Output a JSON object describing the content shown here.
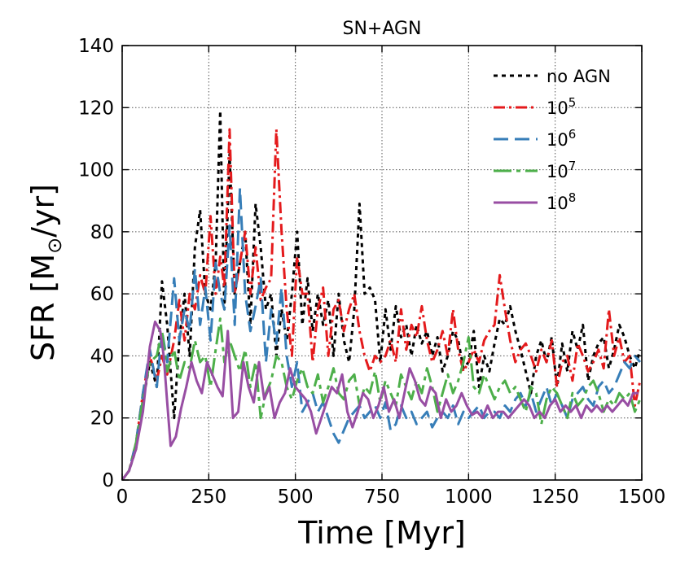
{
  "chart_data": {
    "type": "line",
    "title": "SN+AGN",
    "xlabel": "Time [Myr]",
    "ylabel_parts": {
      "pre": "SFR [M",
      "sub": "⊙",
      "post": "/yr]"
    },
    "xlim": [
      0,
      1500
    ],
    "ylim": [
      0,
      140
    ],
    "xticks": [
      0,
      250,
      500,
      750,
      1000,
      1250,
      1500
    ],
    "yticks": [
      0,
      20,
      40,
      60,
      80,
      100,
      120,
      140
    ],
    "grid": true,
    "legend_position": "top-right",
    "series": [
      {
        "name": "no AGN",
        "base": "no AGN",
        "sup": "",
        "color": "#000000",
        "dash": "5,5",
        "x": [
          0,
          20,
          40,
          60,
          80,
          100,
          115,
          130,
          150,
          165,
          180,
          195,
          210,
          225,
          240,
          255,
          270,
          283,
          295,
          310,
          325,
          340,
          355,
          370,
          385,
          400,
          415,
          430,
          445,
          460,
          475,
          490,
          505,
          520,
          535,
          550,
          565,
          580,
          595,
          610,
          625,
          640,
          655,
          670,
          685,
          700,
          715,
          730,
          745,
          760,
          775,
          790,
          805,
          820,
          835,
          850,
          865,
          880,
          895,
          910,
          925,
          940,
          955,
          970,
          985,
          1000,
          1015,
          1030,
          1045,
          1060,
          1075,
          1090,
          1105,
          1120,
          1135,
          1150,
          1165,
          1180,
          1195,
          1210,
          1225,
          1240,
          1255,
          1270,
          1285,
          1300,
          1315,
          1330,
          1345,
          1360,
          1375,
          1390,
          1405,
          1420,
          1435,
          1450,
          1465,
          1480,
          1495
        ],
        "y": [
          0,
          3,
          10,
          25,
          38,
          30,
          64,
          50,
          20,
          45,
          60,
          40,
          75,
          87,
          60,
          55,
          70,
          119,
          55,
          105,
          60,
          70,
          80,
          50,
          89,
          75,
          55,
          60,
          40,
          55,
          45,
          60,
          80,
          50,
          65,
          48,
          60,
          50,
          58,
          40,
          60,
          45,
          38,
          55,
          89,
          60,
          62,
          58,
          38,
          55,
          42,
          56,
          46,
          50,
          40,
          50,
          44,
          48,
          40,
          46,
          35,
          40,
          48,
          45,
          36,
          38,
          48,
          30,
          40,
          35,
          44,
          52,
          50,
          56,
          48,
          42,
          35,
          28,
          40,
          45,
          38,
          46,
          30,
          44,
          35,
          48,
          42,
          50,
          32,
          40,
          44,
          46,
          36,
          42,
          50,
          46,
          40,
          36,
          42
        ]
      },
      {
        "name": "10^5",
        "base": "10",
        "sup": "5",
        "color": "#e41a1c",
        "dash": "14,5,3,5",
        "x": [
          0,
          20,
          40,
          60,
          80,
          100,
          115,
          130,
          150,
          165,
          180,
          195,
          210,
          225,
          240,
          255,
          270,
          283,
          295,
          310,
          325,
          340,
          355,
          370,
          385,
          400,
          415,
          430,
          445,
          460,
          475,
          490,
          505,
          520,
          535,
          550,
          565,
          580,
          595,
          610,
          625,
          640,
          655,
          670,
          685,
          700,
          715,
          730,
          745,
          760,
          775,
          790,
          805,
          820,
          835,
          850,
          865,
          880,
          895,
          910,
          925,
          940,
          955,
          970,
          985,
          1000,
          1015,
          1030,
          1045,
          1060,
          1075,
          1090,
          1105,
          1120,
          1135,
          1150,
          1165,
          1180,
          1195,
          1210,
          1225,
          1240,
          1255,
          1270,
          1285,
          1300,
          1315,
          1330,
          1345,
          1360,
          1375,
          1390,
          1405,
          1420,
          1435,
          1450,
          1465,
          1480,
          1495
        ],
        "y": [
          0,
          3,
          12,
          28,
          40,
          32,
          40,
          34,
          45,
          58,
          45,
          60,
          55,
          66,
          60,
          85,
          60,
          72,
          62,
          113,
          60,
          70,
          80,
          60,
          75,
          58,
          62,
          65,
          113,
          80,
          55,
          40,
          72,
          60,
          60,
          38,
          55,
          62,
          40,
          55,
          58,
          48,
          55,
          60,
          48,
          40,
          35,
          40,
          38,
          40,
          45,
          38,
          55,
          42,
          50,
          46,
          56,
          45,
          38,
          42,
          48,
          40,
          55,
          42,
          35,
          38,
          42,
          38,
          45,
          48,
          50,
          66,
          55,
          45,
          38,
          42,
          44,
          40,
          35,
          42,
          38,
          45,
          30,
          38,
          40,
          32,
          44,
          40,
          35,
          38,
          42,
          36,
          55,
          40,
          46,
          38,
          40,
          24,
          32
        ]
      },
      {
        "name": "10^6",
        "base": "10",
        "sup": "6",
        "color": "#377eb8",
        "dash": "18,8",
        "x": [
          0,
          20,
          40,
          60,
          80,
          100,
          115,
          130,
          150,
          165,
          180,
          195,
          210,
          225,
          240,
          255,
          270,
          283,
          295,
          310,
          325,
          340,
          355,
          370,
          385,
          400,
          415,
          430,
          445,
          460,
          475,
          490,
          505,
          520,
          535,
          550,
          565,
          580,
          595,
          610,
          625,
          640,
          655,
          670,
          685,
          700,
          715,
          730,
          745,
          760,
          775,
          790,
          805,
          820,
          835,
          850,
          865,
          880,
          895,
          910,
          925,
          940,
          955,
          970,
          985,
          1000,
          1015,
          1030,
          1045,
          1060,
          1075,
          1090,
          1105,
          1120,
          1135,
          1150,
          1165,
          1180,
          1195,
          1210,
          1225,
          1240,
          1255,
          1270,
          1285,
          1300,
          1315,
          1330,
          1345,
          1360,
          1375,
          1390,
          1405,
          1420,
          1435,
          1450,
          1465,
          1480,
          1495
        ],
        "y": [
          0,
          3,
          12,
          28,
          42,
          30,
          48,
          38,
          65,
          45,
          55,
          48,
          68,
          50,
          62,
          45,
          70,
          60,
          55,
          82,
          50,
          94,
          60,
          48,
          56,
          65,
          38,
          55,
          44,
          62,
          40,
          30,
          38,
          22,
          25,
          28,
          22,
          25,
          20,
          15,
          12,
          16,
          20,
          22,
          24,
          20,
          22,
          24,
          20,
          25,
          16,
          18,
          24,
          20,
          22,
          18,
          20,
          22,
          17,
          20,
          22,
          20,
          24,
          18,
          22,
          20,
          22,
          24,
          20,
          22,
          22,
          20,
          24,
          22,
          26,
          28,
          24,
          28,
          22,
          26,
          30,
          24,
          28,
          24,
          20,
          26,
          28,
          30,
          26,
          24,
          30,
          32,
          28,
          30,
          34,
          38,
          36,
          40,
          38
        ]
      },
      {
        "name": "10^7",
        "base": "10",
        "sup": "7",
        "color": "#4daf4a",
        "dash": "22,6,5,6",
        "x": [
          0,
          20,
          40,
          60,
          80,
          100,
          115,
          130,
          150,
          165,
          180,
          195,
          210,
          225,
          240,
          255,
          270,
          283,
          295,
          310,
          325,
          340,
          355,
          370,
          385,
          400,
          415,
          430,
          445,
          460,
          475,
          490,
          505,
          520,
          535,
          550,
          565,
          580,
          595,
          610,
          625,
          640,
          655,
          670,
          685,
          700,
          715,
          730,
          745,
          760,
          775,
          790,
          805,
          820,
          835,
          850,
          865,
          880,
          895,
          910,
          925,
          940,
          955,
          970,
          985,
          1000,
          1015,
          1030,
          1045,
          1060,
          1075,
          1090,
          1105,
          1120,
          1135,
          1150,
          1165,
          1180,
          1195,
          1210,
          1225,
          1240,
          1255,
          1270,
          1285,
          1300,
          1315,
          1330,
          1345,
          1360,
          1375,
          1390,
          1405,
          1420,
          1435,
          1450,
          1465,
          1480,
          1495
        ],
        "y": [
          0,
          3,
          12,
          26,
          38,
          40,
          48,
          35,
          42,
          32,
          38,
          36,
          45,
          38,
          40,
          30,
          42,
          52,
          38,
          45,
          40,
          35,
          42,
          30,
          38,
          20,
          28,
          32,
          40,
          38,
          30,
          26,
          32,
          36,
          30,
          28,
          34,
          25,
          30,
          36,
          28,
          26,
          32,
          34,
          24,
          30,
          28,
          35,
          25,
          32,
          28,
          24,
          34,
          30,
          26,
          32,
          28,
          36,
          30,
          22,
          28,
          34,
          28,
          32,
          38,
          46,
          30,
          28,
          34,
          30,
          26,
          30,
          32,
          28,
          30,
          26,
          22,
          30,
          28,
          18,
          26,
          30,
          28,
          24,
          20,
          28,
          24,
          26,
          30,
          32,
          28,
          22,
          26,
          24,
          28,
          26,
          28,
          22,
          26
        ]
      },
      {
        "name": "10^8",
        "base": "10",
        "sup": "8",
        "color": "#984ea3",
        "dash": "",
        "x": [
          0,
          20,
          40,
          60,
          80,
          95,
          110,
          120,
          130,
          140,
          155,
          170,
          185,
          200,
          215,
          230,
          245,
          260,
          275,
          290,
          305,
          320,
          335,
          350,
          365,
          380,
          395,
          410,
          425,
          440,
          455,
          470,
          485,
          500,
          515,
          530,
          545,
          560,
          575,
          590,
          605,
          620,
          635,
          650,
          665,
          680,
          695,
          710,
          725,
          740,
          755,
          770,
          785,
          800,
          815,
          830,
          845,
          860,
          875,
          890,
          905,
          920,
          935,
          950,
          965,
          980,
          995,
          1010,
          1025,
          1040,
          1055,
          1070,
          1085,
          1100,
          1115,
          1130,
          1145,
          1160,
          1175,
          1190,
          1205,
          1220,
          1235,
          1250,
          1265,
          1280,
          1295,
          1310,
          1325,
          1340,
          1355,
          1370,
          1385,
          1400,
          1415,
          1430,
          1445,
          1460,
          1475,
          1490
        ],
        "y": [
          0,
          3,
          10,
          22,
          43,
          51,
          48,
          40,
          25,
          11,
          14,
          23,
          30,
          38,
          32,
          28,
          38,
          34,
          30,
          27,
          48,
          20,
          22,
          38,
          30,
          25,
          38,
          26,
          30,
          20,
          25,
          28,
          36,
          30,
          28,
          26,
          22,
          15,
          20,
          25,
          30,
          28,
          34,
          22,
          17,
          22,
          28,
          26,
          20,
          24,
          30,
          22,
          26,
          20,
          28,
          36,
          32,
          26,
          24,
          30,
          28,
          20,
          26,
          22,
          24,
          28,
          24,
          21,
          22,
          20,
          24,
          20,
          22,
          22,
          20,
          22,
          24,
          26,
          24,
          20,
          22,
          20,
          24,
          26,
          22,
          24,
          22,
          24,
          20,
          24,
          22,
          24,
          22,
          24,
          22,
          24,
          26,
          24,
          28,
          28
        ]
      }
    ]
  }
}
